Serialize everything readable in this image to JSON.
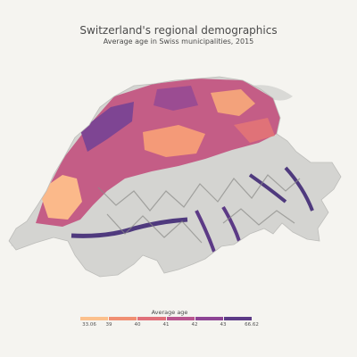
{
  "map": {
    "title": "Switzerland's regional demographics",
    "subtitle": "Average age in Swiss municipalities, 2015"
  },
  "legend": {
    "title": "Average age",
    "labels": [
      "33.06",
      "39",
      "40",
      "41",
      "42",
      "43",
      "66.62"
    ],
    "colors": [
      "#fcc08c",
      "#f08f72",
      "#e0707a",
      "#b8558f",
      "#8d4494",
      "#5c3a86"
    ]
  },
  "colors": {
    "background": "#f5f4f0",
    "lake": "#d9d9d6",
    "relief": "#c9c9c6",
    "relief_dark": "#8a8a88"
  }
}
